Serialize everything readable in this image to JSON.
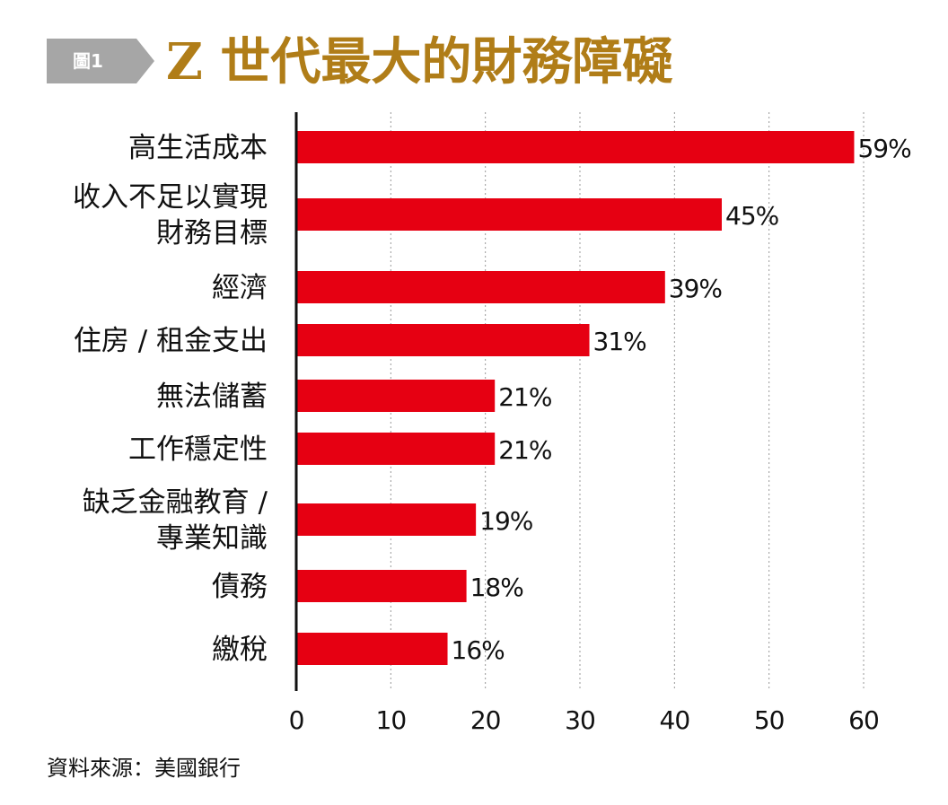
{
  "header": {
    "badge": "圖1",
    "title": "Z 世代最大的財務障礙"
  },
  "source": "資料來源：美國銀行",
  "colors": {
    "bar": "#e60012",
    "title": "#b07d18",
    "badge": "#a6a6a6",
    "grid": "#9a9a9a",
    "axis": "#111111",
    "text": "#111111"
  },
  "chart_data": {
    "type": "bar",
    "orientation": "horizontal",
    "categories": [
      [
        "高生活成本"
      ],
      [
        "收入不足以實現",
        "財務目標"
      ],
      [
        "經濟"
      ],
      [
        "住房 / 租金支出"
      ],
      [
        "無法儲蓄"
      ],
      [
        "工作穩定性"
      ],
      [
        "缺乏金融教育 /",
        "專業知識"
      ],
      [
        "債務"
      ],
      [
        "繳稅"
      ]
    ],
    "values": [
      59,
      45,
      39,
      31,
      21,
      21,
      19,
      18,
      16
    ],
    "value_labels": [
      "59%",
      "45%",
      "39%",
      "31%",
      "21%",
      "21%",
      "19%",
      "18%",
      "16%"
    ],
    "xlim": [
      0,
      60
    ],
    "xticks": [
      0,
      10,
      20,
      30,
      40,
      50,
      60
    ],
    "xtick_labels": [
      "0",
      "10",
      "20",
      "30",
      "40",
      "50",
      "60"
    ],
    "grid": "vertical dotted",
    "legend": "none"
  }
}
